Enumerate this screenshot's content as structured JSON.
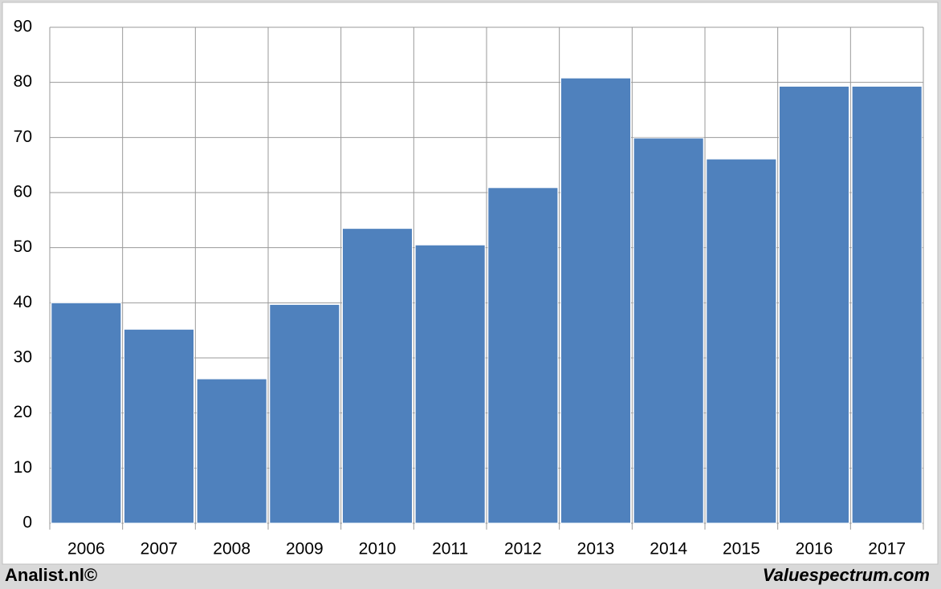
{
  "chart_data": {
    "type": "bar",
    "categories": [
      "2006",
      "2007",
      "2008",
      "2009",
      "2010",
      "2011",
      "2012",
      "2013",
      "2014",
      "2015",
      "2016",
      "2017"
    ],
    "values": [
      40,
      35.2,
      26.2,
      39.7,
      53.5,
      50.5,
      60.9,
      80.8,
      69.9,
      66.1,
      79.3,
      79.3
    ],
    "color": "#4f81bd",
    "ylim": [
      0,
      90
    ],
    "yticks": [
      0,
      10,
      20,
      30,
      40,
      50,
      60,
      70,
      80,
      90
    ],
    "grid": true,
    "footer_left": "Analist.nl©",
    "footer_right": "Valuespectrum.com"
  }
}
